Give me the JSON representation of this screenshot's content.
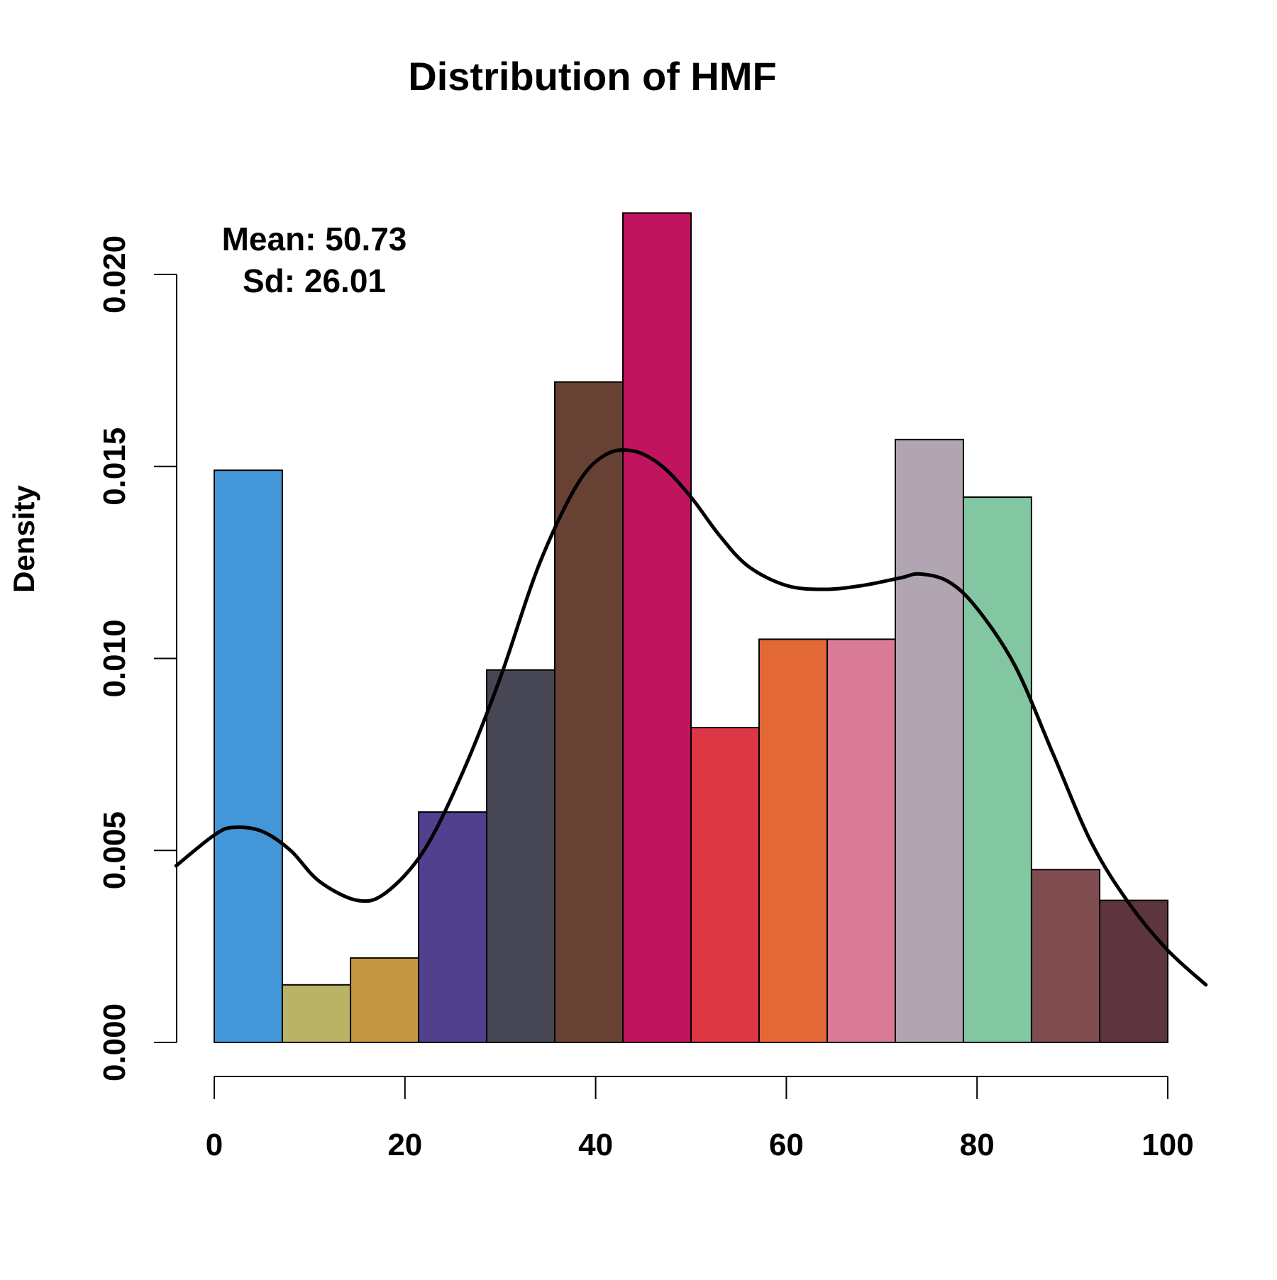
{
  "chart_data": {
    "type": "bar",
    "subtype": "histogram",
    "title": "Distribution of HMF",
    "xlabel": "",
    "ylabel": "Density",
    "xlim": [
      -10,
      105
    ],
    "ylim": [
      0,
      0.022
    ],
    "x_ticks": [
      0,
      20,
      40,
      60,
      80,
      100
    ],
    "x_tick_labels": [
      "0",
      "20",
      "40",
      "60",
      "80",
      "100"
    ],
    "y_ticks": [
      0,
      0.005,
      0.01,
      0.015,
      0.02
    ],
    "y_tick_labels": [
      "0.000",
      "0.005",
      "0.010",
      "0.015",
      "0.020"
    ],
    "grid": false,
    "legend": "none",
    "bins": [
      {
        "x0": 0.0,
        "x1": 7.14,
        "value": 0.0149,
        "color": "#4397D8"
      },
      {
        "x0": 7.14,
        "x1": 14.29,
        "value": 0.0015,
        "color": "#B8B365"
      },
      {
        "x0": 14.29,
        "x1": 21.43,
        "value": 0.0022,
        "color": "#C49843"
      },
      {
        "x0": 21.43,
        "x1": 28.57,
        "value": 0.006,
        "color": "#51408E"
      },
      {
        "x0": 28.57,
        "x1": 35.71,
        "value": 0.0097,
        "color": "#464655"
      },
      {
        "x0": 35.71,
        "x1": 42.86,
        "value": 0.0172,
        "color": "#674134"
      },
      {
        "x0": 42.86,
        "x1": 50.0,
        "value": 0.0216,
        "color": "#C0155E"
      },
      {
        "x0": 50.0,
        "x1": 57.14,
        "value": 0.0082,
        "color": "#DD3644"
      },
      {
        "x0": 57.14,
        "x1": 64.29,
        "value": 0.0105,
        "color": "#E26836"
      },
      {
        "x0": 64.29,
        "x1": 71.43,
        "value": 0.0105,
        "color": "#D97A96"
      },
      {
        "x0": 71.43,
        "x1": 78.57,
        "value": 0.0157,
        "color": "#B1A5B2"
      },
      {
        "x0": 78.57,
        "x1": 85.71,
        "value": 0.0142,
        "color": "#82C7A2"
      },
      {
        "x0": 85.71,
        "x1": 92.86,
        "value": 0.0045,
        "color": "#7F4D50"
      },
      {
        "x0": 92.86,
        "x1": 100.0,
        "value": 0.0037,
        "color": "#5E353E"
      }
    ],
    "density_curve": {
      "x": [
        -4,
        0,
        2,
        5,
        8,
        11,
        15,
        18,
        22,
        26,
        30,
        34,
        38,
        41,
        44,
        47,
        50,
        53,
        56,
        60,
        64,
        68,
        72,
        74,
        77,
        80,
        84,
        88,
        92,
        96,
        100,
        104
      ],
      "y": [
        0.0046,
        0.0054,
        0.0056,
        0.0055,
        0.005,
        0.0042,
        0.0037,
        0.0039,
        0.005,
        0.007,
        0.0095,
        0.0124,
        0.0145,
        0.0153,
        0.0154,
        0.015,
        0.0142,
        0.0132,
        0.0124,
        0.0119,
        0.0118,
        0.0119,
        0.0121,
        0.0122,
        0.012,
        0.0113,
        0.0098,
        0.0075,
        0.0052,
        0.0036,
        0.0024,
        0.0015
      ]
    },
    "annotations": {
      "mean": "Mean: 50.73",
      "sd": "Sd: 26.01"
    }
  }
}
